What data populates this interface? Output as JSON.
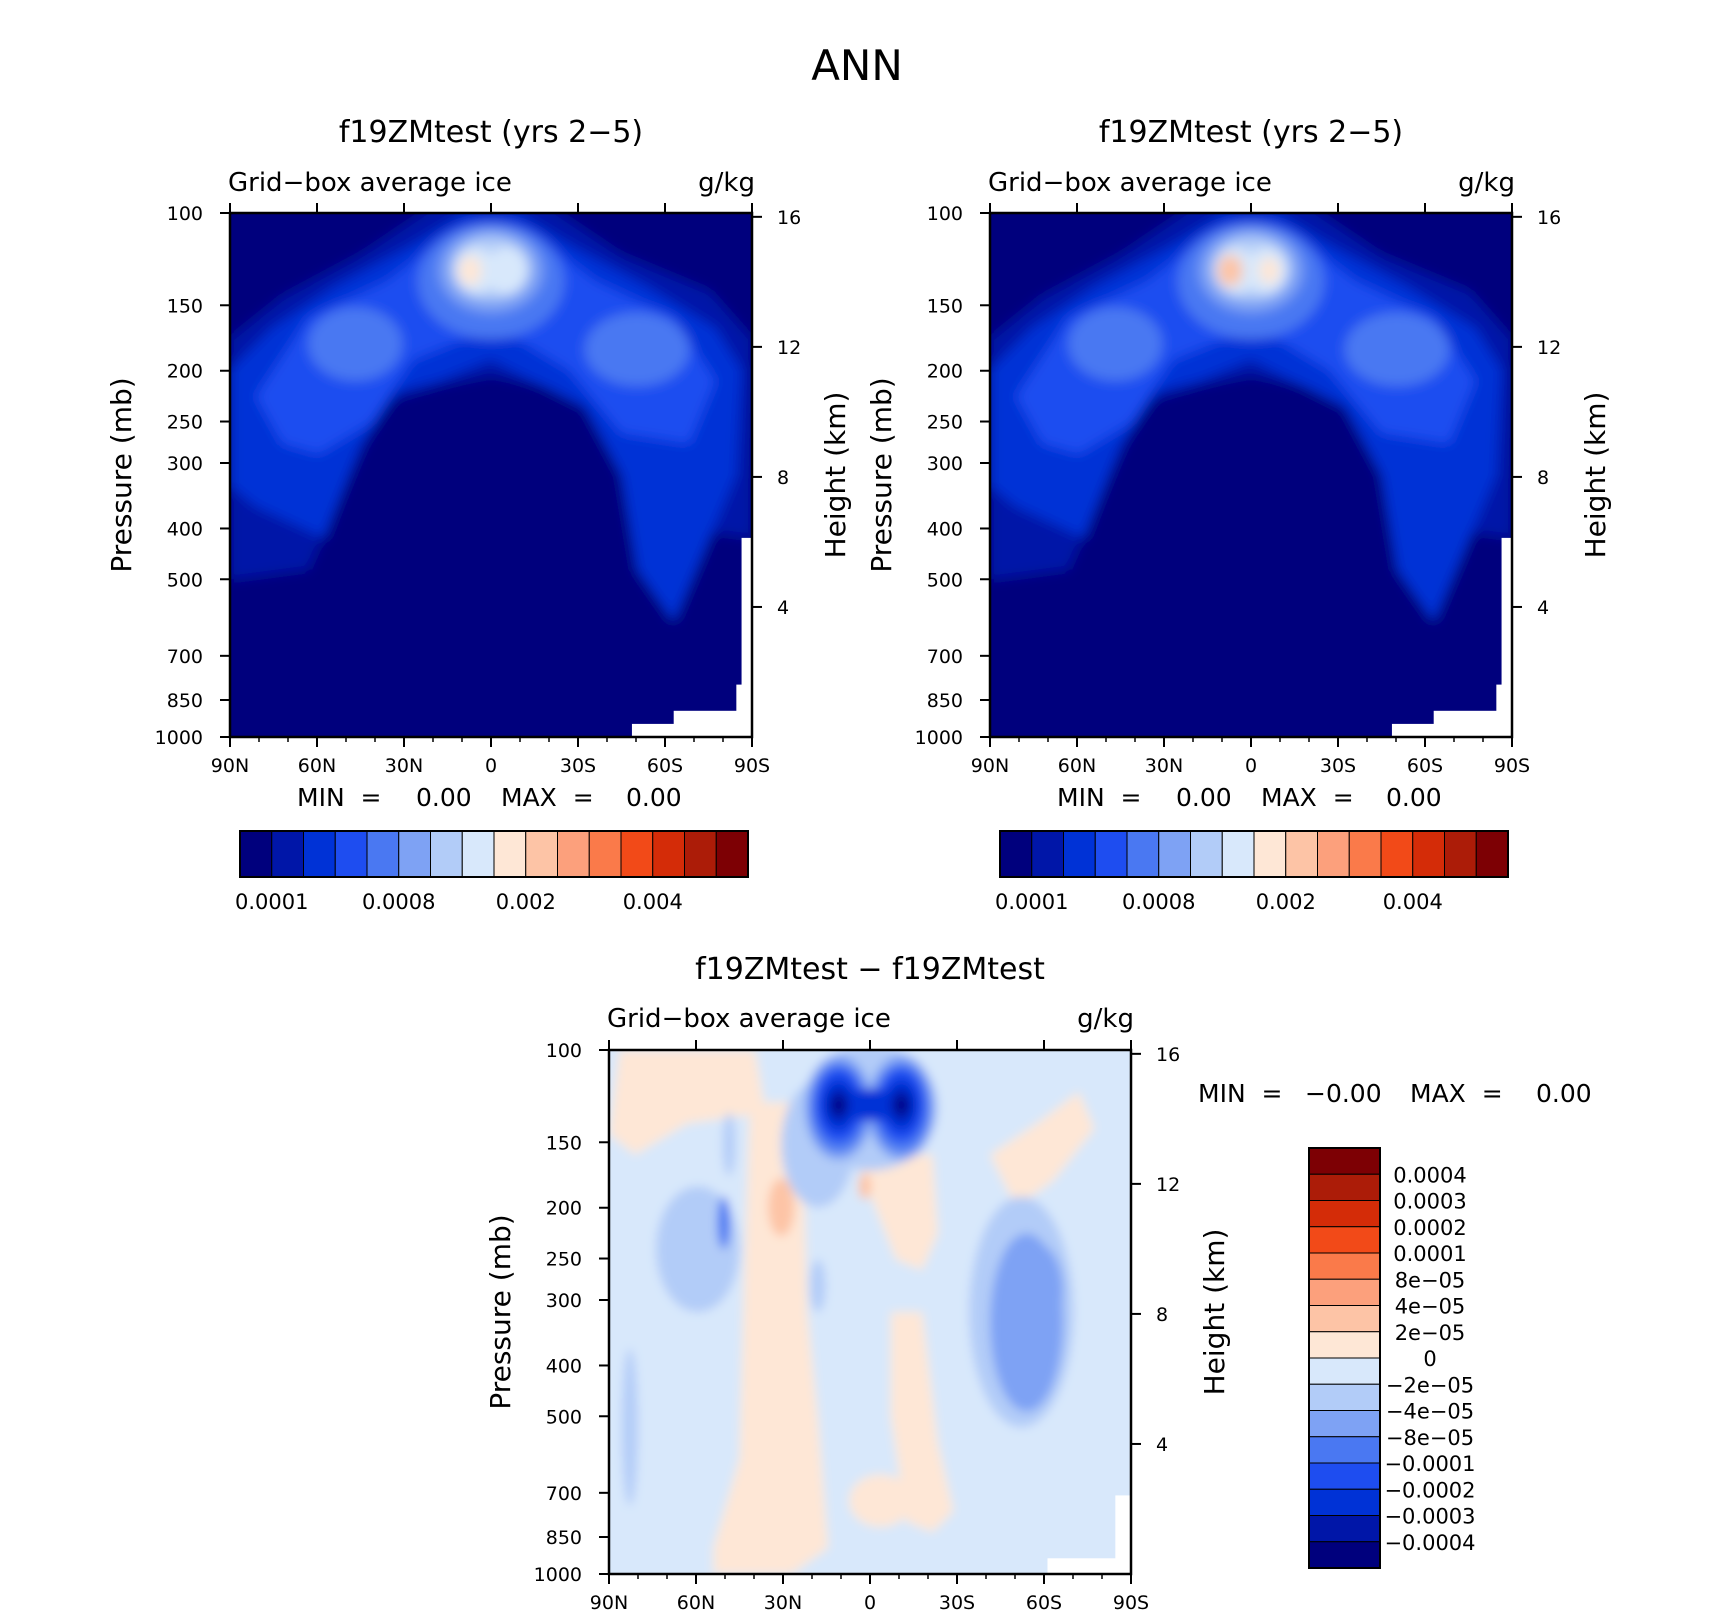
{
  "figure_title": "ANN",
  "colors": {
    "main_scale": [
      "#00007d",
      "#0016a8",
      "#0032d6",
      "#1e4df0",
      "#4a78f2",
      "#7ea2f4",
      "#b2ccf8",
      "#d8e8fb",
      "#fee7d6",
      "#fdc4a6",
      "#fca07c",
      "#fa7a4a",
      "#f24a18",
      "#d42c08",
      "#ac1c08",
      "#7d0004"
    ],
    "diff_scale": [
      "#00007d",
      "#0016a8",
      "#0032d6",
      "#1e4df0",
      "#4a78f2",
      "#7ea2f4",
      "#b2ccf8",
      "#d8e8fb",
      "#fee7d6",
      "#fdc4a6",
      "#fca07c",
      "#fa7a4a",
      "#f24a18",
      "#d42c08",
      "#ac1c08",
      "#7d0004"
    ]
  },
  "chart_data": [
    {
      "type": "heatmap",
      "title": "f19ZMtest (yrs 2−5)",
      "left_label": "Grid−box average ice",
      "right_label": "g/kg",
      "ylabel": "Pressure (mb)",
      "y2label": "Height (km)",
      "x_ticks": [
        "90N",
        "60N",
        "30N",
        "0",
        "30S",
        "60S",
        "90S"
      ],
      "y_ticks": [
        "100",
        "150",
        "200",
        "250",
        "300",
        "400",
        "500",
        "700",
        "850",
        "1000"
      ],
      "y2_ticks": [
        "16",
        "12",
        "8",
        "4"
      ],
      "xlim": [
        90,
        -90
      ],
      "ylim": [
        1000,
        100
      ],
      "minmax_text": {
        "min_label": "MIN  =",
        "min_value": "0.00",
        "max_label": "MAX  =",
        "max_value": "0.00"
      },
      "colorbar": {
        "orientation": "horizontal",
        "labels": [
          "0.0001",
          "0.0008",
          "0.002",
          "0.004"
        ],
        "levels": 16
      }
    },
    {
      "type": "heatmap",
      "title": "f19ZMtest (yrs 2−5)",
      "left_label": "Grid−box average ice",
      "right_label": "g/kg",
      "ylabel": "Pressure (mb)",
      "y2label": "Height (km)",
      "x_ticks": [
        "90N",
        "60N",
        "30N",
        "0",
        "30S",
        "60S",
        "90S"
      ],
      "y_ticks": [
        "100",
        "150",
        "200",
        "250",
        "300",
        "400",
        "500",
        "700",
        "850",
        "1000"
      ],
      "y2_ticks": [
        "16",
        "12",
        "8",
        "4"
      ],
      "xlim": [
        90,
        -90
      ],
      "ylim": [
        1000,
        100
      ],
      "minmax_text": {
        "min_label": "MIN  =",
        "min_value": "0.00",
        "max_label": "MAX  =",
        "max_value": "0.00"
      },
      "colorbar": {
        "orientation": "horizontal",
        "labels": [
          "0.0001",
          "0.0008",
          "0.002",
          "0.004"
        ],
        "levels": 16
      }
    },
    {
      "type": "heatmap",
      "title": "f19ZMtest − f19ZMtest",
      "left_label": "Grid−box average ice",
      "right_label": "g/kg",
      "ylabel": "Pressure (mb)",
      "y2label": "Height (km)",
      "x_ticks": [
        "90N",
        "60N",
        "30N",
        "0",
        "30S",
        "60S",
        "90S"
      ],
      "y_ticks": [
        "100",
        "150",
        "200",
        "250",
        "300",
        "400",
        "500",
        "700",
        "850",
        "1000"
      ],
      "y2_ticks": [
        "16",
        "12",
        "8",
        "4"
      ],
      "xlim": [
        90,
        -90
      ],
      "ylim": [
        1000,
        100
      ],
      "minmax_text": {
        "min_label": "MIN  =",
        "min_value": "−0.00",
        "max_label": "MAX  =",
        "max_value": "0.00"
      },
      "colorbar": {
        "orientation": "vertical",
        "labels": [
          "0.0004",
          "0.0003",
          "0.0002",
          "0.0001",
          "8e−05",
          "4e−05",
          "2e−05",
          "0",
          "−2e−05",
          "−4e−05",
          "−8e−05",
          "−0.0001",
          "−0.0002",
          "−0.0003",
          "−0.0004"
        ],
        "levels": 16
      }
    }
  ]
}
